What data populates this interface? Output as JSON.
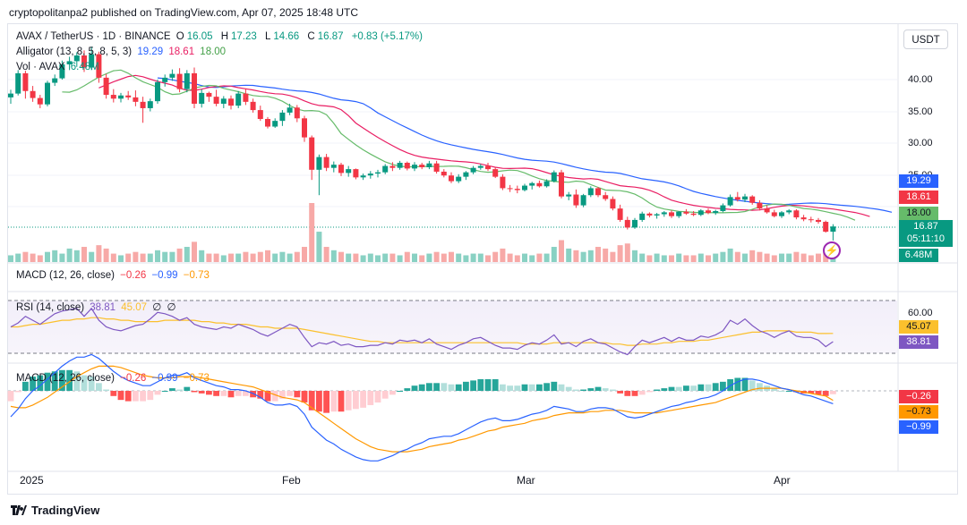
{
  "header": {
    "published": "cryptopolitanpa2 published on TradingView.com, Apr 07, 2025 18:48 UTC"
  },
  "symbol": {
    "name": "AVAX / TetherUS · 1D · BINANCE",
    "o_label": "O",
    "o": "16.05",
    "h_label": "H",
    "h": "17.23",
    "l_label": "L",
    "l": "14.66",
    "c_label": "C",
    "c": "16.87",
    "change": "+0.83 (+5.17%)"
  },
  "currency_button": "USDT",
  "indicators": {
    "alligator": {
      "label": "Alligator (13, 8, 5, 8, 5, 3)",
      "jaw": "19.29",
      "teeth": "18.61",
      "lips": "18.00"
    },
    "volume": {
      "label": "Vol · AVAX",
      "value": "6.48M"
    },
    "macd_top": {
      "label": "MACD (12, 26, close)",
      "hist": "−0.26",
      "macd": "−0.99",
      "signal": "−0.73"
    },
    "rsi": {
      "label": "RSI (14, close)",
      "rsi": "38.81",
      "ma": "45.07",
      "v3": "∅",
      "v4": "∅"
    },
    "macd": {
      "label": "MACD (12, 26, close)",
      "hist": "−0.26",
      "macd": "−0.99",
      "signal": "−0.73"
    }
  },
  "price_axis": {
    "ticks": [
      "40.00",
      "35.00",
      "30.00",
      "25.00"
    ]
  },
  "price_tags": {
    "jaw": "19.29",
    "teeth": "18.61",
    "lips": "18.00",
    "last": "16.87",
    "countdown": "05:11:10",
    "volume": "6.48M"
  },
  "rsi_axis": {
    "tick": "60.00",
    "ma_tag": "45.07",
    "rsi_tag": "38.81"
  },
  "macd_axis": {
    "hist_tag": "−0.26",
    "signal_tag": "−0.73",
    "macd_tag": "−0.99"
  },
  "x_axis": [
    "2025",
    "Feb",
    "Mar",
    "Apr"
  ],
  "footer": {
    "brand": "TradingView"
  },
  "colors": {
    "up": "#089981",
    "down": "#f23645",
    "jaw": "#2962ff",
    "teeth": "#e91e63",
    "lips": "#66bb6a",
    "rsi": "#7e57c2",
    "rsi_ma": "#fbc02d",
    "macd": "#2962ff",
    "signal": "#ff9800"
  },
  "chart_data": {
    "type": "candlestick",
    "x_range": [
      "2024-12-22",
      "2025-04-07"
    ],
    "price_range": [
      14,
      45
    ],
    "candles": [
      [
        37.2,
        38.4,
        36.2,
        37.8
      ],
      [
        37.8,
        41.5,
        37.5,
        41.0
      ],
      [
        41.0,
        41.4,
        37.0,
        38.2
      ],
      [
        38.2,
        39.0,
        36.5,
        37.1
      ],
      [
        37.1,
        37.6,
        35.5,
        36.1
      ],
      [
        36.1,
        39.8,
        35.8,
        39.5
      ],
      [
        39.5,
        40.8,
        39.0,
        40.2
      ],
      [
        40.2,
        43.0,
        40.0,
        42.4
      ],
      [
        42.4,
        43.6,
        41.5,
        42.9
      ],
      [
        42.9,
        44.3,
        42.0,
        43.8
      ],
      [
        43.8,
        44.6,
        41.2,
        41.9
      ],
      [
        41.9,
        45.2,
        41.5,
        44.0
      ],
      [
        44.0,
        44.4,
        39.5,
        40.3
      ],
      [
        40.3,
        40.9,
        37.0,
        37.6
      ],
      [
        37.6,
        38.5,
        36.4,
        37.0
      ],
      [
        37.0,
        37.9,
        36.4,
        37.5
      ],
      [
        37.5,
        38.2,
        36.8,
        37.2
      ],
      [
        37.2,
        38.3,
        35.8,
        36.5
      ],
      [
        36.5,
        37.3,
        33.2,
        35.5
      ],
      [
        35.5,
        37.0,
        35.0,
        36.6
      ],
      [
        36.6,
        40.0,
        36.2,
        39.6
      ],
      [
        39.6,
        40.8,
        38.9,
        40.3
      ],
      [
        40.3,
        41.6,
        39.8,
        40.9
      ],
      [
        40.9,
        41.8,
        38.0,
        38.5
      ],
      [
        38.5,
        41.5,
        38.0,
        41.0
      ],
      [
        41.0,
        41.9,
        35.5,
        36.2
      ],
      [
        36.2,
        38.5,
        35.6,
        37.9
      ],
      [
        37.9,
        38.1,
        36.5,
        37.3
      ],
      [
        37.3,
        38.4,
        35.8,
        36.2
      ],
      [
        36.2,
        37.4,
        35.5,
        37.0
      ],
      [
        37.0,
        37.5,
        35.3,
        35.9
      ],
      [
        35.9,
        38.2,
        35.5,
        37.8
      ],
      [
        37.8,
        38.6,
        36.0,
        36.5
      ],
      [
        36.5,
        37.0,
        34.8,
        35.2
      ],
      [
        35.2,
        35.9,
        33.5,
        33.8
      ],
      [
        33.8,
        34.1,
        32.3,
        32.6
      ],
      [
        32.6,
        33.9,
        32.4,
        33.5
      ],
      [
        33.5,
        35.2,
        32.7,
        34.8
      ],
      [
        34.8,
        36.2,
        34.4,
        35.6
      ],
      [
        35.6,
        36.0,
        33.3,
        33.9
      ],
      [
        33.9,
        34.3,
        30.2,
        30.9
      ],
      [
        30.9,
        31.2,
        24.2,
        25.8
      ],
      [
        25.8,
        28.2,
        21.8,
        27.8
      ],
      [
        27.8,
        28.3,
        25.6,
        26.1
      ],
      [
        26.1,
        27.1,
        25.4,
        26.6
      ],
      [
        26.6,
        26.9,
        24.8,
        25.3
      ],
      [
        25.3,
        26.4,
        24.7,
        25.9
      ],
      [
        25.9,
        26.0,
        24.3,
        24.6
      ],
      [
        24.6,
        25.2,
        24.2,
        24.9
      ],
      [
        24.9,
        25.6,
        24.4,
        25.2
      ],
      [
        25.2,
        25.8,
        24.6,
        25.4
      ],
      [
        25.4,
        26.7,
        25.1,
        26.4
      ],
      [
        26.4,
        27.0,
        25.6,
        26.1
      ],
      [
        26.1,
        27.2,
        25.8,
        26.9
      ],
      [
        26.9,
        27.1,
        25.7,
        26.0
      ],
      [
        26.0,
        27.0,
        25.6,
        26.6
      ],
      [
        26.6,
        26.9,
        25.9,
        26.2
      ],
      [
        26.2,
        27.2,
        25.9,
        26.8
      ],
      [
        26.8,
        27.2,
        25.2,
        25.5
      ],
      [
        25.5,
        25.9,
        24.6,
        24.9
      ],
      [
        24.9,
        25.4,
        23.7,
        24.0
      ],
      [
        24.0,
        25.1,
        23.7,
        24.7
      ],
      [
        24.7,
        25.6,
        24.2,
        25.4
      ],
      [
        25.4,
        26.4,
        25.1,
        26.1
      ],
      [
        26.1,
        26.7,
        25.8,
        26.4
      ],
      [
        26.4,
        26.9,
        25.6,
        25.9
      ],
      [
        25.9,
        26.2,
        24.5,
        24.7
      ],
      [
        24.7,
        25.1,
        22.6,
        22.9
      ],
      [
        22.9,
        23.4,
        22.3,
        22.8
      ],
      [
        22.8,
        23.3,
        22.1,
        22.6
      ],
      [
        22.6,
        23.6,
        22.4,
        23.3
      ],
      [
        23.3,
        23.9,
        22.7,
        23.7
      ],
      [
        23.7,
        24.1,
        23.0,
        23.2
      ],
      [
        23.2,
        24.3,
        23.0,
        24.0
      ],
      [
        24.0,
        25.7,
        23.8,
        25.4
      ],
      [
        25.4,
        25.8,
        21.3,
        21.6
      ],
      [
        21.6,
        22.3,
        21.0,
        21.9
      ],
      [
        21.9,
        22.7,
        19.8,
        20.2
      ],
      [
        20.2,
        22.0,
        19.9,
        21.8
      ],
      [
        21.8,
        23.2,
        21.5,
        22.9
      ],
      [
        22.9,
        23.1,
        21.5,
        21.8
      ],
      [
        21.8,
        22.3,
        20.9,
        21.2
      ],
      [
        21.2,
        21.6,
        19.4,
        19.7
      ],
      [
        19.7,
        20.3,
        17.6,
        17.9
      ],
      [
        17.9,
        18.4,
        16.4,
        16.7
      ],
      [
        16.7,
        18.2,
        16.5,
        17.9
      ],
      [
        17.9,
        19.2,
        17.6,
        18.9
      ],
      [
        18.9,
        19.1,
        18.3,
        18.6
      ],
      [
        18.6,
        19.0,
        18.1,
        18.8
      ],
      [
        18.8,
        19.3,
        18.4,
        19.1
      ],
      [
        19.1,
        19.4,
        18.2,
        18.5
      ],
      [
        18.5,
        19.3,
        18.2,
        19.2
      ],
      [
        19.2,
        19.6,
        18.7,
        18.9
      ],
      [
        18.9,
        19.3,
        18.5,
        18.7
      ],
      [
        18.7,
        19.6,
        18.5,
        19.4
      ],
      [
        19.4,
        19.7,
        18.8,
        19.0
      ],
      [
        19.0,
        19.5,
        18.7,
        19.3
      ],
      [
        19.3,
        20.5,
        19.1,
        20.2
      ],
      [
        20.2,
        21.9,
        20.0,
        21.5
      ],
      [
        21.5,
        22.3,
        20.8,
        21.1
      ],
      [
        21.1,
        22.0,
        20.7,
        21.6
      ],
      [
        21.6,
        21.8,
        20.3,
        20.6
      ],
      [
        20.6,
        21.0,
        19.4,
        19.7
      ],
      [
        19.7,
        20.2,
        18.9,
        19.1
      ],
      [
        19.1,
        19.5,
        18.3,
        18.5
      ],
      [
        18.5,
        19.3,
        18.2,
        19.1
      ],
      [
        19.1,
        19.6,
        18.8,
        19.4
      ],
      [
        19.4,
        19.6,
        18.0,
        18.3
      ],
      [
        18.3,
        18.7,
        17.7,
        18.0
      ],
      [
        18.0,
        18.4,
        17.5,
        17.9
      ],
      [
        17.9,
        18.2,
        17.3,
        17.6
      ],
      [
        17.6,
        17.8,
        15.9,
        16.05
      ],
      [
        16.05,
        17.23,
        14.66,
        16.87
      ]
    ],
    "volume_m": [
      4,
      5,
      6,
      5,
      4,
      6,
      7,
      5,
      8,
      7,
      9,
      6,
      10,
      8,
      5,
      4,
      5,
      6,
      5,
      5,
      7,
      6,
      6,
      8,
      9,
      12,
      7,
      5,
      5,
      4,
      5,
      5,
      6,
      5,
      6,
      7,
      5,
      6,
      5,
      6,
      9,
      35,
      18,
      9,
      7,
      6,
      5,
      5,
      4,
      5,
      4,
      5,
      5,
      4,
      6,
      5,
      4,
      5,
      6,
      5,
      6,
      5,
      4,
      5,
      5,
      4,
      6,
      8,
      5,
      4,
      5,
      4,
      5,
      5,
      9,
      13,
      8,
      7,
      6,
      7,
      9,
      8,
      6,
      10,
      11,
      7,
      5,
      4,
      5,
      4,
      4,
      5,
      4,
      4,
      5,
      4,
      5,
      6,
      8,
      6,
      5,
      7,
      6,
      5,
      4,
      5,
      5,
      6,
      5,
      4,
      5,
      6,
      6.48
    ],
    "alligator_last": {
      "jaw": 19.29,
      "teeth": 18.61,
      "lips": 18.0
    },
    "rsi": [
      50,
      53,
      58,
      55,
      52,
      56,
      60,
      62,
      63,
      64,
      58,
      64,
      55,
      50,
      48,
      47,
      49,
      51,
      52,
      56,
      61,
      60,
      58,
      55,
      57,
      52,
      50,
      49,
      48,
      50,
      49,
      52,
      50,
      48,
      45,
      43,
      46,
      49,
      52,
      50,
      42,
      35,
      38,
      37,
      39,
      36,
      37,
      35,
      35,
      36,
      36,
      38,
      37,
      40,
      39,
      40,
      38,
      41,
      37,
      35,
      33,
      36,
      38,
      41,
      42,
      39,
      36,
      34,
      34,
      33,
      36,
      38,
      37,
      40,
      44,
      37,
      38,
      35,
      39,
      41,
      38,
      37,
      34,
      31,
      29,
      35,
      40,
      38,
      40,
      42,
      39,
      42,
      40,
      40,
      43,
      42,
      44,
      47,
      55,
      52,
      56,
      51,
      47,
      45,
      42,
      45,
      47,
      43,
      42,
      42,
      40,
      35,
      38.81
    ],
    "rsi_ma": [
      50,
      50,
      51,
      52,
      52,
      53,
      54,
      55,
      55,
      56,
      56,
      57,
      57,
      56,
      56,
      55,
      55,
      54,
      54,
      54,
      54,
      55,
      55,
      55,
      55,
      55,
      54,
      54,
      53,
      53,
      52,
      52,
      52,
      51,
      50,
      50,
      49,
      49,
      49,
      49,
      48,
      47,
      46,
      45,
      44,
      43,
      42,
      41,
      40,
      39,
      39,
      38,
      38,
      38,
      38,
      38,
      38,
      38,
      38,
      38,
      38,
      38,
      38,
      38,
      38,
      38,
      38,
      38,
      38,
      38,
      37,
      37,
      37,
      37,
      38,
      38,
      38,
      38,
      38,
      38,
      38,
      38,
      37,
      37,
      36,
      36,
      37,
      37,
      37,
      38,
      38,
      39,
      39,
      39,
      40,
      40,
      41,
      42,
      43,
      44,
      45,
      46,
      46,
      47,
      47,
      47,
      47,
      46,
      46,
      46,
      45,
      45,
      45.07
    ],
    "macd": [
      -2.0,
      -1.4,
      -0.6,
      0.0,
      0.4,
      0.9,
      1.4,
      1.9,
      2.3,
      2.6,
      2.6,
      2.8,
      2.5,
      2.0,
      1.5,
      1.1,
      0.8,
      0.6,
      0.4,
      0.4,
      0.7,
      1.0,
      1.2,
      1.2,
      1.4,
      1.0,
      0.8,
      0.6,
      0.4,
      0.3,
      0.1,
      0.1,
      0.0,
      -0.2,
      -0.5,
      -0.9,
      -1.1,
      -1.1,
      -1.0,
      -1.2,
      -1.8,
      -2.8,
      -3.3,
      -3.8,
      -4.1,
      -4.5,
      -4.8,
      -5.1,
      -5.3,
      -5.4,
      -5.4,
      -5.2,
      -5.0,
      -4.7,
      -4.5,
      -4.2,
      -4.0,
      -3.7,
      -3.6,
      -3.5,
      -3.5,
      -3.3,
      -3.0,
      -2.7,
      -2.4,
      -2.2,
      -2.1,
      -2.3,
      -2.3,
      -2.2,
      -2.0,
      -1.8,
      -1.7,
      -1.5,
      -1.2,
      -1.3,
      -1.4,
      -1.6,
      -1.6,
      -1.4,
      -1.3,
      -1.3,
      -1.4,
      -1.7,
      -2.0,
      -2.1,
      -2.0,
      -1.8,
      -1.6,
      -1.4,
      -1.2,
      -1.1,
      -0.9,
      -0.8,
      -0.6,
      -0.5,
      -0.3,
      0.0,
      0.4,
      0.7,
      0.9,
      0.9,
      0.8,
      0.6,
      0.4,
      0.2,
      0.1,
      -0.1,
      -0.3,
      -0.4,
      -0.6,
      -0.8,
      -0.99
    ],
    "macd_signal": [
      -1.2,
      -1.3,
      -1.3,
      -1.1,
      -0.8,
      -0.5,
      -0.1,
      0.3,
      0.7,
      1.1,
      1.4,
      1.7,
      1.9,
      1.9,
      1.9,
      1.8,
      1.6,
      1.4,
      1.2,
      1.1,
      1.0,
      1.0,
      1.0,
      1.1,
      1.1,
      1.1,
      1.0,
      0.9,
      0.8,
      0.7,
      0.6,
      0.5,
      0.4,
      0.3,
      0.1,
      -0.1,
      -0.3,
      -0.5,
      -0.6,
      -0.7,
      -0.9,
      -1.3,
      -1.7,
      -2.1,
      -2.5,
      -2.9,
      -3.3,
      -3.7,
      -4.0,
      -4.3,
      -4.5,
      -4.6,
      -4.7,
      -4.7,
      -4.7,
      -4.6,
      -4.5,
      -4.3,
      -4.2,
      -4.1,
      -4.0,
      -3.8,
      -3.7,
      -3.5,
      -3.3,
      -3.1,
      -3.0,
      -2.8,
      -2.7,
      -2.6,
      -2.5,
      -2.3,
      -2.2,
      -2.1,
      -1.9,
      -1.8,
      -1.7,
      -1.7,
      -1.7,
      -1.6,
      -1.6,
      -1.5,
      -1.5,
      -1.5,
      -1.6,
      -1.7,
      -1.7,
      -1.7,
      -1.7,
      -1.6,
      -1.5,
      -1.4,
      -1.3,
      -1.2,
      -1.1,
      -1.0,
      -0.9,
      -0.7,
      -0.5,
      -0.3,
      -0.1,
      0.1,
      0.2,
      0.2,
      0.2,
      0.2,
      0.1,
      0.0,
      -0.1,
      -0.2,
      -0.3,
      -0.4,
      -0.73
    ]
  }
}
